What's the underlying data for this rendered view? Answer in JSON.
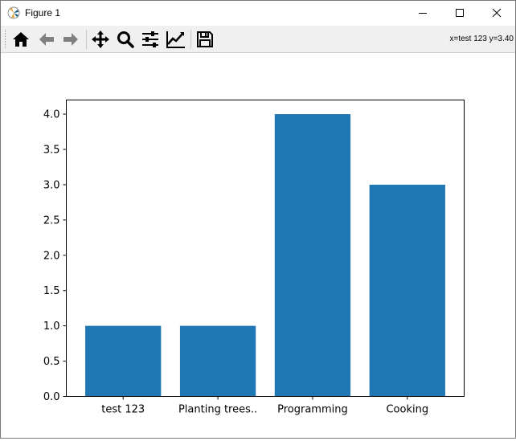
{
  "window": {
    "title": "Figure 1",
    "controls": [
      "minimize",
      "maximize",
      "close"
    ]
  },
  "toolbar": {
    "buttons": [
      {
        "name": "home",
        "icon": "home-icon"
      },
      {
        "name": "back",
        "icon": "arrow-left-icon"
      },
      {
        "name": "forward",
        "icon": "arrow-right-icon"
      },
      {
        "name": "pan",
        "icon": "move-icon"
      },
      {
        "name": "zoom",
        "icon": "magnifier-icon"
      },
      {
        "name": "configure-subplots",
        "icon": "sliders-icon"
      },
      {
        "name": "edit-axis",
        "icon": "line-chart-icon"
      },
      {
        "name": "save",
        "icon": "floppy-disk-icon"
      }
    ],
    "coords": "x=test 123 y=3.40"
  },
  "colors": {
    "bar": "#1f77b4",
    "axes": "#000000"
  },
  "chart_data": {
    "type": "bar",
    "categories": [
      "test 123",
      "Planting trees..",
      "Programming",
      "Cooking"
    ],
    "values": [
      1,
      1,
      4,
      3
    ],
    "ylim": [
      0,
      4.2
    ],
    "yticks": [
      "0.0",
      "0.5",
      "1.0",
      "1.5",
      "2.0",
      "2.5",
      "3.0",
      "3.5",
      "4.0"
    ],
    "grid": false
  }
}
